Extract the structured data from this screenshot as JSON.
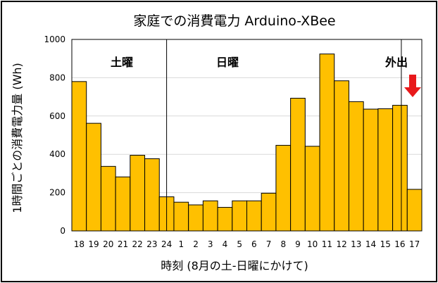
{
  "chart_data": {
    "type": "bar",
    "title": "家庭での消費電力 Arduino-XBee",
    "xlabel": "時刻 (8月の土-日曜にかけて)",
    "ylabel": "1時間ごとの消費電力量 (Wh)",
    "ylim": [
      0,
      1000
    ],
    "yticks": [
      "0",
      "200",
      "400",
      "600",
      "800",
      "1000"
    ],
    "categories": [
      "18",
      "19",
      "20",
      "21",
      "22",
      "23",
      "24",
      "1",
      "2",
      "3",
      "4",
      "5",
      "6",
      "7",
      "8",
      "9",
      "10",
      "11",
      "12",
      "13",
      "14",
      "15",
      "16",
      "17"
    ],
    "values": [
      780,
      562,
      337,
      282,
      395,
      377,
      178,
      150,
      136,
      157,
      123,
      157,
      157,
      197,
      447,
      693,
      442,
      924,
      784,
      675,
      636,
      638,
      656,
      217
    ],
    "grid": true,
    "bar_color": "#FFC000",
    "bar_edge_color": "#000000",
    "arrow_color": "#E8191B",
    "annotations": {
      "saturday": "土曜",
      "sunday": "日曜",
      "outing": "外出"
    }
  }
}
